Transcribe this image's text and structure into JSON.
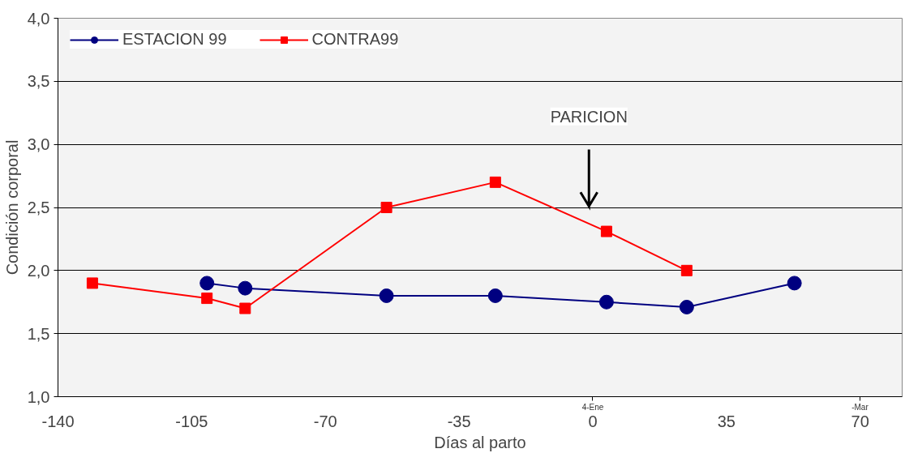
{
  "chart_data": {
    "type": "line",
    "xlabel": "Días al parto",
    "ylabel": "Condición corporal",
    "series": [
      {
        "name": "ESTACION 99",
        "color": "#000080",
        "marker": "circle",
        "x": [
          -101,
          -91,
          -54,
          -25.5,
          3.6,
          24.6,
          52.8
        ],
        "values": [
          1.9,
          1.86,
          1.8,
          1.8,
          1.75,
          1.71,
          1.9
        ]
      },
      {
        "name": "CONTRA99",
        "color": "#ff0000",
        "marker": "square",
        "x": [
          -131,
          -101,
          -91,
          -54,
          -25.5,
          3.6,
          24.6
        ],
        "values": [
          1.9,
          1.78,
          1.7,
          2.5,
          2.7,
          2.31,
          2.0
        ]
      }
    ],
    "xlim": [
      -140,
      81
    ],
    "xticks": [
      -140,
      -105,
      -70,
      -35,
      0,
      35,
      70
    ],
    "ylim": [
      1.0,
      4.0
    ],
    "yticks": [
      {
        "value": 1.0,
        "label": "1,0"
      },
      {
        "value": 1.5,
        "label": "1,5"
      },
      {
        "value": 2.0,
        "label": "2,0"
      },
      {
        "value": 2.5,
        "label": "2,5"
      },
      {
        "value": 3.0,
        "label": "3,0"
      },
      {
        "value": 3.5,
        "label": "3,5"
      },
      {
        "value": 4.0,
        "label": "4,0"
      }
    ],
    "ref_lines": [
      {
        "axis": "x",
        "value": -1,
        "label": "PARICION",
        "color": "#000000"
      }
    ],
    "annotations": [
      "4-Ene",
      "-Mar"
    ],
    "grid": "y",
    "legend": "top left"
  }
}
